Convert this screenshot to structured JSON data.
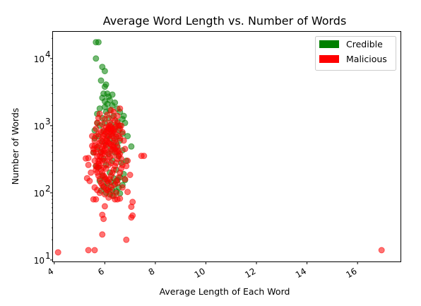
{
  "chart_data": {
    "type": "scatter",
    "title": "Average Word Length vs. Number of Words",
    "xlabel": "Average Length of Each Word",
    "ylabel": "Number of Words",
    "xlim": [
      3.95,
      17.7
    ],
    "ylim": [
      9.5,
      25000
    ],
    "yscale": "log",
    "xticks": [
      4,
      6,
      8,
      10,
      12,
      14,
      16
    ],
    "xtick_labels": [
      "4",
      "6",
      "8",
      "10",
      "12",
      "14",
      "16"
    ],
    "yticks": [
      10,
      100,
      1000,
      10000
    ],
    "ytick_labels": [
      "10",
      "10",
      "10",
      "10"
    ],
    "ytick_exponents": [
      "1",
      "2",
      "3",
      "4"
    ],
    "grid": false,
    "legend_position": "top-right",
    "series": [
      {
        "name": "Credible",
        "color": "#008000",
        "points": [
          [
            5.65,
            17500
          ],
          [
            5.75,
            17500
          ],
          [
            5.65,
            10000
          ],
          [
            5.9,
            7500
          ],
          [
            6.0,
            6500
          ],
          [
            5.85,
            4700
          ],
          [
            6.05,
            4100
          ],
          [
            6.0,
            3800
          ],
          [
            6.1,
            3000
          ],
          [
            5.95,
            3000
          ],
          [
            6.3,
            2900
          ],
          [
            6.15,
            2700
          ],
          [
            5.9,
            2600
          ],
          [
            6.2,
            2400
          ],
          [
            6.0,
            2300
          ],
          [
            6.4,
            2200
          ],
          [
            6.1,
            2100
          ],
          [
            6.3,
            2000
          ],
          [
            6.0,
            1900
          ],
          [
            6.5,
            1800
          ],
          [
            5.8,
            1800
          ],
          [
            6.2,
            1700
          ],
          [
            6.6,
            1600
          ],
          [
            6.05,
            1600
          ],
          [
            5.7,
            1500
          ],
          [
            6.75,
            1400
          ],
          [
            6.35,
            1400
          ],
          [
            6.15,
            1300
          ],
          [
            5.9,
            1300
          ],
          [
            6.7,
            1250
          ],
          [
            6.5,
            1150
          ],
          [
            6.0,
            1100
          ],
          [
            6.25,
            1050
          ],
          [
            6.6,
            1000
          ],
          [
            5.8,
            1000
          ],
          [
            6.4,
            950
          ],
          [
            6.15,
            900
          ],
          [
            5.6,
            850
          ],
          [
            6.55,
            850
          ],
          [
            5.95,
            820
          ],
          [
            6.3,
            780
          ],
          [
            6.7,
            760
          ],
          [
            6.1,
            700
          ],
          [
            5.75,
            700
          ],
          [
            6.45,
            680
          ],
          [
            6.2,
            640
          ],
          [
            6.6,
            600
          ],
          [
            5.9,
            580
          ],
          [
            6.35,
            560
          ],
          [
            6.05,
            520
          ],
          [
            6.5,
            500
          ],
          [
            5.7,
            480
          ],
          [
            7.05,
            490
          ],
          [
            6.25,
            450
          ],
          [
            6.7,
            430
          ],
          [
            5.85,
            410
          ],
          [
            6.4,
            400
          ],
          [
            6.15,
            380
          ],
          [
            6.55,
            350
          ],
          [
            5.95,
            320
          ],
          [
            6.3,
            300
          ],
          [
            6.65,
            280
          ],
          [
            6.05,
            260
          ],
          [
            5.75,
            240
          ],
          [
            6.45,
            220
          ],
          [
            6.2,
            200
          ],
          [
            6.75,
            190
          ],
          [
            5.9,
            180
          ],
          [
            6.6,
            170
          ],
          [
            6.35,
            165
          ],
          [
            6.0,
            160
          ],
          [
            6.5,
            155
          ],
          [
            6.8,
            155
          ],
          [
            5.8,
            150
          ],
          [
            6.25,
            145
          ],
          [
            6.1,
            140
          ],
          [
            6.4,
            135
          ],
          [
            6.7,
            130
          ],
          [
            5.95,
            125
          ],
          [
            6.55,
            120
          ],
          [
            6.15,
            115
          ],
          [
            6.3,
            110
          ],
          [
            5.85,
            108
          ],
          [
            6.45,
            105
          ],
          [
            6.05,
            100
          ],
          [
            6.6,
            98
          ],
          [
            6.2,
            95
          ],
          [
            6.35,
            90
          ],
          [
            5.7,
            1100
          ],
          [
            5.6,
            650
          ],
          [
            6.9,
            700
          ],
          [
            6.85,
            300
          ],
          [
            5.55,
            400
          ],
          [
            6.8,
            1100
          ],
          [
            5.65,
            250
          ]
        ]
      },
      {
        "name": "Malicious",
        "color": "#ff0000",
        "points": [
          [
            4.15,
            13
          ],
          [
            5.35,
            14
          ],
          [
            5.6,
            14
          ],
          [
            16.95,
            14
          ],
          [
            5.9,
            24
          ],
          [
            6.85,
            20
          ],
          [
            5.95,
            41
          ],
          [
            5.9,
            47
          ],
          [
            6.0,
            63
          ],
          [
            7.05,
            43
          ],
          [
            7.1,
            46
          ],
          [
            7.05,
            62
          ],
          [
            7.1,
            73
          ],
          [
            5.55,
            80
          ],
          [
            5.65,
            80
          ],
          [
            6.5,
            80
          ],
          [
            6.6,
            82
          ],
          [
            6.4,
            80
          ],
          [
            6.9,
            103
          ],
          [
            7.0,
            185
          ],
          [
            7.45,
            355
          ],
          [
            7.55,
            355
          ],
          [
            5.25,
            325
          ],
          [
            5.35,
            330
          ],
          [
            6.6,
            1800
          ],
          [
            6.25,
            1700
          ],
          [
            5.35,
            260
          ],
          [
            5.45,
            200
          ],
          [
            5.4,
            150
          ],
          [
            5.3,
            165
          ],
          [
            5.5,
            500
          ],
          [
            5.5,
            700
          ],
          [
            6.8,
            160
          ],
          [
            6.7,
            120
          ],
          [
            6.5,
            140
          ],
          [
            6.45,
            100
          ],
          [
            5.7,
            110
          ],
          [
            5.6,
            120
          ],
          [
            5.8,
            100
          ],
          [
            6.0,
            95
          ],
          [
            6.15,
            85
          ],
          [
            6.3,
            90
          ],
          [
            5.55,
            400
          ],
          [
            6.85,
            250
          ],
          [
            6.9,
            300
          ],
          [
            6.8,
            450
          ],
          [
            6.75,
            600
          ],
          [
            6.7,
            800
          ],
          [
            6.65,
            1000
          ],
          [
            5.65,
            900
          ],
          [
            5.7,
            1100
          ],
          [
            5.75,
            1300
          ],
          [
            5.8,
            1500
          ],
          [
            6.5,
            1400
          ],
          [
            6.4,
            1200
          ],
          [
            6.35,
            1600
          ],
          [
            6.3,
            1300
          ],
          [
            6.2,
            1100
          ],
          [
            6.1,
            1450
          ],
          [
            6.0,
            1250
          ],
          [
            5.9,
            1050
          ],
          [
            6.05,
            950
          ],
          [
            6.15,
            900
          ],
          [
            6.25,
            850
          ],
          [
            6.35,
            800
          ],
          [
            6.45,
            750
          ],
          [
            6.55,
            700
          ],
          [
            6.6,
            650
          ],
          [
            5.95,
            850
          ],
          [
            5.85,
            800
          ],
          [
            5.75,
            750
          ],
          [
            5.65,
            700
          ],
          [
            5.6,
            600
          ],
          [
            5.6,
            500
          ],
          [
            5.55,
            450
          ],
          [
            5.65,
            400
          ],
          [
            5.7,
            350
          ],
          [
            5.6,
            300
          ],
          [
            5.65,
            250
          ],
          [
            5.7,
            200
          ],
          [
            5.75,
            180
          ],
          [
            5.8,
            160
          ],
          [
            5.85,
            140
          ],
          [
            5.9,
            130
          ],
          [
            5.95,
            120
          ],
          [
            6.05,
            115
          ],
          [
            6.1,
            110
          ],
          [
            6.2,
            105
          ],
          [
            6.25,
            120
          ],
          [
            6.35,
            130
          ],
          [
            6.45,
            150
          ],
          [
            6.55,
            170
          ],
          [
            6.6,
            200
          ],
          [
            6.65,
            230
          ],
          [
            6.7,
            260
          ],
          [
            6.65,
            320
          ],
          [
            6.6,
            380
          ],
          [
            6.55,
            420
          ],
          [
            6.5,
            480
          ],
          [
            6.45,
            550
          ],
          [
            6.4,
            600
          ],
          [
            6.35,
            650
          ],
          [
            6.3,
            700
          ],
          [
            6.25,
            750
          ],
          [
            6.2,
            800
          ],
          [
            6.15,
            700
          ],
          [
            6.1,
            650
          ],
          [
            6.05,
            600
          ],
          [
            6.0,
            550
          ],
          [
            5.95,
            500
          ],
          [
            5.9,
            450
          ],
          [
            5.85,
            400
          ],
          [
            5.8,
            350
          ],
          [
            5.75,
            300
          ],
          [
            5.8,
            250
          ],
          [
            5.85,
            220
          ],
          [
            5.9,
            200
          ],
          [
            5.95,
            180
          ],
          [
            6.0,
            170
          ],
          [
            6.05,
            160
          ],
          [
            6.1,
            150
          ],
          [
            6.15,
            140
          ],
          [
            6.2,
            160
          ],
          [
            6.25,
            180
          ],
          [
            6.3,
            200
          ],
          [
            6.35,
            220
          ],
          [
            6.4,
            250
          ],
          [
            6.45,
            280
          ],
          [
            6.5,
            320
          ],
          [
            6.55,
            360
          ],
          [
            6.5,
            400
          ],
          [
            6.45,
            420
          ],
          [
            6.4,
            450
          ],
          [
            6.35,
            480
          ],
          [
            6.3,
            500
          ],
          [
            6.25,
            520
          ],
          [
            6.2,
            540
          ],
          [
            6.15,
            560
          ],
          [
            6.1,
            580
          ],
          [
            6.05,
            500
          ],
          [
            6.0,
            460
          ],
          [
            5.95,
            420
          ],
          [
            5.9,
            380
          ],
          [
            5.85,
            340
          ],
          [
            5.8,
            300
          ],
          [
            5.75,
            270
          ],
          [
            5.7,
            240
          ],
          [
            5.65,
            220
          ],
          [
            5.7,
            450
          ],
          [
            5.75,
            500
          ],
          [
            5.8,
            550
          ],
          [
            5.85,
            600
          ],
          [
            5.9,
            650
          ],
          [
            5.95,
            700
          ],
          [
            6.0,
            750
          ],
          [
            6.05,
            800
          ],
          [
            6.1,
            850
          ],
          [
            6.15,
            950
          ],
          [
            6.2,
            1000
          ],
          [
            6.25,
            950
          ],
          [
            6.3,
            900
          ],
          [
            6.35,
            850
          ],
          [
            6.4,
            900
          ],
          [
            6.45,
            1000
          ],
          [
            6.5,
            1100
          ],
          [
            6.55,
            1000
          ],
          [
            6.6,
            900
          ],
          [
            6.0,
            300
          ],
          [
            6.1,
            320
          ],
          [
            6.2,
            340
          ],
          [
            6.3,
            360
          ],
          [
            6.15,
            260
          ],
          [
            6.25,
            280
          ],
          [
            6.05,
            230
          ],
          [
            5.95,
            240
          ],
          [
            6.1,
            400
          ],
          [
            6.2,
            420
          ],
          [
            6.3,
            440
          ],
          [
            6.0,
            380
          ],
          [
            5.9,
            300
          ]
        ]
      }
    ]
  }
}
